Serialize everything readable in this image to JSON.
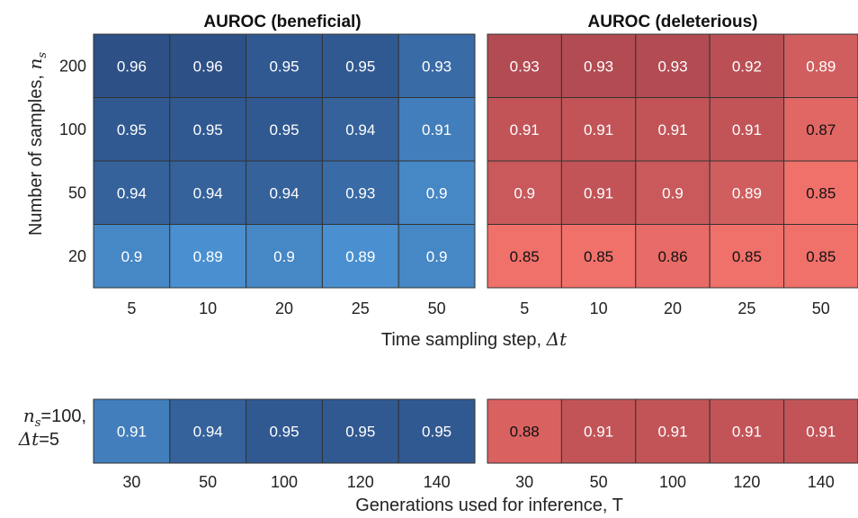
{
  "panels": {
    "beneficial_title": "AUROC (beneficial)",
    "deleterious_title": "AUROC (deleterious)"
  },
  "labels": {
    "y_axis": "Number of samples, ",
    "y_axis_symbol": "n",
    "y_axis_symbol_sub": "s",
    "x_axis_top": "Time sampling step, ",
    "x_axis_top_symbol": "Δt",
    "x_axis_bottom": "Generations used for inference, T",
    "bottom_row_line1_symbol": "n",
    "bottom_row_line1_sub": "s",
    "bottom_row_line1_value": "=100,",
    "bottom_row_line2_symbol": "Δt",
    "bottom_row_line2_value": "=5"
  },
  "colors": {
    "beneficial_dark": "#2d5086",
    "beneficial_light": "#4a90d0",
    "deleterious_dark": "#b24b52",
    "deleterious_light": "#f0706a",
    "grid_line": "#333333"
  },
  "chart_data": [
    {
      "type": "heatmap",
      "title": "AUROC (beneficial)",
      "xlabel": "Time sampling step, Δt",
      "ylabel": "Number of samples, n_s",
      "x": [
        "5",
        "10",
        "20",
        "25",
        "50"
      ],
      "y": [
        "200",
        "100",
        "50",
        "20"
      ],
      "values": [
        [
          0.96,
          0.96,
          0.95,
          0.95,
          0.93
        ],
        [
          0.95,
          0.95,
          0.95,
          0.94,
          0.91
        ],
        [
          0.94,
          0.94,
          0.94,
          0.93,
          0.9
        ],
        [
          0.9,
          0.89,
          0.9,
          0.89,
          0.9
        ]
      ]
    },
    {
      "type": "heatmap",
      "title": "AUROC (deleterious)",
      "xlabel": "Time sampling step, Δt",
      "ylabel": "Number of samples, n_s",
      "x": [
        "5",
        "10",
        "20",
        "25",
        "50"
      ],
      "y": [
        "200",
        "100",
        "50",
        "20"
      ],
      "values": [
        [
          0.93,
          0.93,
          0.93,
          0.92,
          0.89
        ],
        [
          0.91,
          0.91,
          0.91,
          0.91,
          0.87
        ],
        [
          0.9,
          0.91,
          0.9,
          0.89,
          0.85
        ],
        [
          0.85,
          0.85,
          0.86,
          0.85,
          0.85
        ]
      ]
    },
    {
      "type": "heatmap",
      "title": "",
      "xlabel": "Generations used for inference, T",
      "ylabel": "n_s=100, Δt=5",
      "x": [
        "30",
        "50",
        "100",
        "120",
        "140"
      ],
      "y": [
        "n_s=100, Δt=5"
      ],
      "values": [
        [
          0.91,
          0.94,
          0.95,
          0.95,
          0.95
        ]
      ]
    },
    {
      "type": "heatmap",
      "title": "",
      "xlabel": "Generations used for inference, T",
      "ylabel": "n_s=100, Δt=5",
      "x": [
        "30",
        "50",
        "100",
        "120",
        "140"
      ],
      "y": [
        "n_s=100, Δt=5"
      ],
      "values": [
        [
          0.88,
          0.91,
          0.91,
          0.91,
          0.91
        ]
      ]
    }
  ]
}
